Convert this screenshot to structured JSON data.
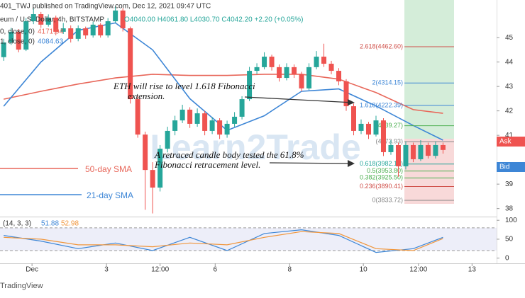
{
  "chart_data": {
    "type": "candlestick",
    "header": {
      "author": "401_TWJ published on TradingView.com, Dec 12, 2021 09:47 UTC",
      "symbol": "eum / U.S. Dollar, 4h, BITSTAMP",
      "ohlc": "O4040.00 H4061.80 L4030.70 C4042.20 +2.20 (+0.05%)",
      "sma50_legend": "0, close, 0)",
      "sma50_value": "4171.94",
      "sma21_legend": "1, close, 0)",
      "sma21_value": "4084.63"
    },
    "annotations": [
      "ETH will rise to level 1.618 Fibonacci",
      "extension.",
      "A retraced candle body tested the 61.8%",
      "Fibonacci retracement level."
    ],
    "watermark": "Learn2Trade",
    "categories": [
      null,
      null,
      null,
      null,
      null,
      null,
      null,
      null,
      null,
      null,
      null,
      null,
      null,
      null,
      null,
      null,
      null,
      null,
      null,
      null,
      null,
      null,
      null,
      null,
      null,
      null,
      null,
      null,
      null,
      null,
      null,
      null,
      null,
      null,
      null,
      null,
      null,
      null,
      null,
      null,
      null,
      null,
      null,
      null,
      null,
      null,
      null,
      null,
      null,
      null,
      null,
      null,
      null,
      null,
      null,
      null,
      null,
      null,
      null,
      null
    ],
    "open": [
      4420,
      4480,
      4524,
      4451,
      4567,
      4596,
      4553,
      4582,
      4524,
      4538,
      4495,
      4538,
      4509,
      4553,
      4509,
      4567,
      4611,
      4538,
      4248,
      4103,
      3958,
      3886,
      4045,
      4118,
      4161,
      4205,
      4147,
      4190,
      4118,
      4161,
      4103,
      4147,
      4176,
      4248,
      4364,
      4379,
      4422,
      4379,
      4335,
      4379,
      4350,
      4292,
      4379,
      4422,
      4393,
      4364,
      4321,
      4219,
      4118,
      4147,
      4103,
      4161,
      4031,
      4060,
      3973,
      4060,
      4002,
      4060,
      4016,
      4060
    ],
    "high": [
      4495,
      4540,
      4535,
      4580,
      4620,
      4605,
      4595,
      4590,
      4560,
      4550,
      4550,
      4545,
      4565,
      4560,
      4580,
      4630,
      4620,
      4545,
      4260,
      4115,
      3990,
      4060,
      4135,
      4180,
      4225,
      4215,
      4210,
      4200,
      4175,
      4170,
      4160,
      4195,
      4260,
      4380,
      4395,
      4440,
      4430,
      4390,
      4395,
      4390,
      4360,
      4395,
      4445,
      4475,
      4405,
      4375,
      4330,
      4230,
      4165,
      4155,
      4180,
      4170,
      4080,
      4070,
      4075,
      4070,
      4080,
      4070,
      4075,
      4070
    ],
    "low": [
      4405,
      4470,
      4440,
      4445,
      4555,
      4540,
      4545,
      4510,
      4515,
      4480,
      4485,
      4495,
      4500,
      4500,
      4500,
      4560,
      4525,
      4230,
      4090,
      3795,
      3780,
      3870,
      4030,
      4100,
      4150,
      4130,
      4135,
      4100,
      4105,
      4085,
      4090,
      4135,
      4165,
      4240,
      4350,
      4370,
      4365,
      4320,
      4325,
      4335,
      4280,
      4285,
      4370,
      4380,
      4350,
      4305,
      4200,
      4100,
      4105,
      4085,
      4095,
      4015,
      4020,
      3930,
      3960,
      3990,
      3995,
      4005,
      4005,
      4025
    ],
    "close": [
      4480,
      4524,
      4451,
      4567,
      4596,
      4553,
      4582,
      4524,
      4538,
      4495,
      4538,
      4509,
      4553,
      4509,
      4567,
      4611,
      4538,
      4248,
      4103,
      3958,
      3886,
      4045,
      4118,
      4161,
      4205,
      4147,
      4190,
      4118,
      4161,
      4103,
      4147,
      4176,
      4248,
      4364,
      4379,
      4422,
      4379,
      4335,
      4379,
      4350,
      4292,
      4379,
      4422,
      4393,
      4364,
      4321,
      4219,
      4118,
      4147,
      4103,
      4161,
      4031,
      4060,
      3973,
      4060,
      4002,
      4060,
      4016,
      4060,
      4040
    ],
    "up_color": "#26a69a",
    "down_color": "#ef5350",
    "series": [
      {
        "name": "50-day SMA",
        "color": "#e8675a",
        "x": [
          0,
          5,
          10,
          15,
          20,
          25,
          30,
          35,
          40,
          45,
          50,
          55,
          59
        ],
        "values": [
          4248,
          4280,
          4310,
          4335,
          4350,
          4345,
          4345,
          4350,
          4350,
          4330,
          4275,
          4205,
          4190
        ]
      },
      {
        "name": "21-day SMA",
        "color": "#3d86d6",
        "x": [
          0,
          5,
          10,
          15,
          20,
          25,
          30,
          35,
          40,
          45,
          50,
          55,
          59
        ],
        "values": [
          4219,
          4400,
          4530,
          4560,
          4450,
          4250,
          4120,
          4180,
          4280,
          4290,
          4220,
          4140,
          4080
        ]
      }
    ],
    "fib_levels": [
      {
        "value": 4462.6,
        "label": "2.618(4462.60)",
        "color": "#d0504a"
      },
      {
        "value": 4314.15,
        "label": "2(4314.15)",
        "color": "#3d86d6"
      },
      {
        "value": 4222.39,
        "label": "1.618(4222.39)",
        "color": "#3d86d6"
      },
      {
        "value": 4139.27,
        "label": "(4139.27)",
        "color": "#4caf50"
      },
      {
        "value": 4073.93,
        "label": "(4073.93)",
        "color": "#888888"
      },
      {
        "value": 3982.17,
        "label": "0.618(3982.17)",
        "color": "#26a69a"
      },
      {
        "value": 3953.8,
        "label": "0.5(3953.80)",
        "color": "#4caf50"
      },
      {
        "value": 3925.5,
        "label": "0.382(3925.50)",
        "color": "#4caf50"
      },
      {
        "value": 3890.41,
        "label": "0.236(3890.41)",
        "color": "#d0504a"
      },
      {
        "value": 3833.72,
        "label": "0(3833.72)",
        "color": "#888888"
      }
    ],
    "xlim": [
      -0.5,
      66.2
    ],
    "xticks": [
      {
        "value": 3.8,
        "label": "Dec"
      },
      {
        "value": 13.8,
        "label": "3"
      },
      {
        "value": 21,
        "label": "12:00"
      },
      {
        "value": 28.4,
        "label": "6"
      },
      {
        "value": 38.4,
        "label": "8"
      },
      {
        "value": 48.3,
        "label": "10"
      },
      {
        "value": 55.7,
        "label": "12:00"
      },
      {
        "value": 62.9,
        "label": "13"
      }
    ],
    "ylim": [
      3770,
      4654
    ],
    "yticks": [
      {
        "value": 3800,
        "label": "38"
      },
      {
        "value": 3900,
        "label": "39"
      },
      {
        "value": 4100,
        "label": "41"
      },
      {
        "value": 4200,
        "label": "42"
      },
      {
        "value": 4300,
        "label": "43"
      },
      {
        "value": 4400,
        "label": "44"
      },
      {
        "value": 4500,
        "label": "45"
      }
    ],
    "ask": "Ask",
    "bid": "Bid",
    "stochastic": {
      "label": "(14, 3, 3)",
      "ylim": [
        -10,
        106
      ],
      "yticks": [
        0,
        50,
        100
      ],
      "bands": [
        20,
        80
      ],
      "series": [
        {
          "color": "#3d86d6",
          "last": "51.88",
          "x": [
            0,
            5,
            10,
            15,
            20,
            25,
            30,
            35,
            40,
            45,
            50,
            55,
            59
          ],
          "values": [
            60,
            45,
            25,
            40,
            20,
            55,
            20,
            65,
            75,
            60,
            15,
            25,
            55
          ]
        },
        {
          "color": "#f0963c",
          "last": "52.98",
          "x": [
            0,
            5,
            10,
            15,
            20,
            25,
            30,
            35,
            40,
            45,
            50,
            55,
            59
          ],
          "values": [
            55,
            50,
            35,
            35,
            30,
            40,
            35,
            55,
            70,
            65,
            25,
            20,
            52
          ]
        }
      ]
    },
    "footer": "TradingView"
  }
}
